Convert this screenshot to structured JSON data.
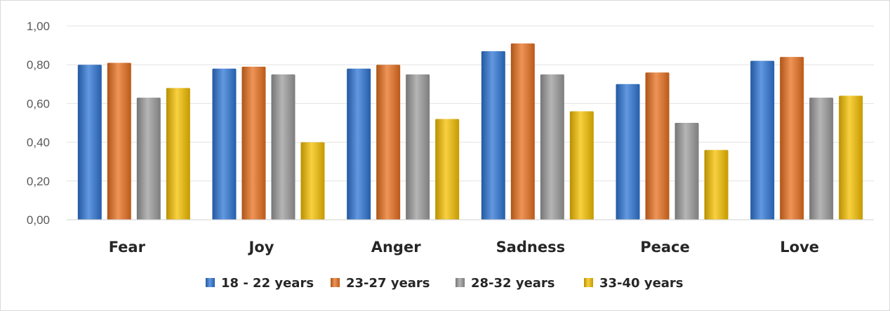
{
  "chart_data": {
    "type": "bar",
    "title": "",
    "xlabel": "",
    "ylabel": "",
    "categories": [
      "Fear",
      "Joy",
      "Anger",
      "Sadness",
      "Peace",
      "Love"
    ],
    "series": [
      {
        "name": "18 - 22 years",
        "color": "#2E75D6",
        "values": [
          0.8,
          0.78,
          0.78,
          0.87,
          0.7,
          0.82
        ]
      },
      {
        "name": "23-27 years",
        "color": "#E8701F",
        "values": [
          0.81,
          0.79,
          0.8,
          0.91,
          0.76,
          0.84
        ]
      },
      {
        "name": "28-32 years",
        "color": "#9C9C9C",
        "values": [
          0.63,
          0.75,
          0.75,
          0.75,
          0.5,
          0.63
        ]
      },
      {
        "name": "33-40 years",
        "color": "#F5C000",
        "values": [
          0.68,
          0.4,
          0.52,
          0.56,
          0.36,
          0.64
        ]
      }
    ],
    "ylim": [
      0,
      1
    ],
    "yticks": [
      "0,00",
      "0,20",
      "0,40",
      "0,60",
      "0,80",
      "1,00"
    ],
    "grid": true,
    "legend_position": "bottom"
  }
}
